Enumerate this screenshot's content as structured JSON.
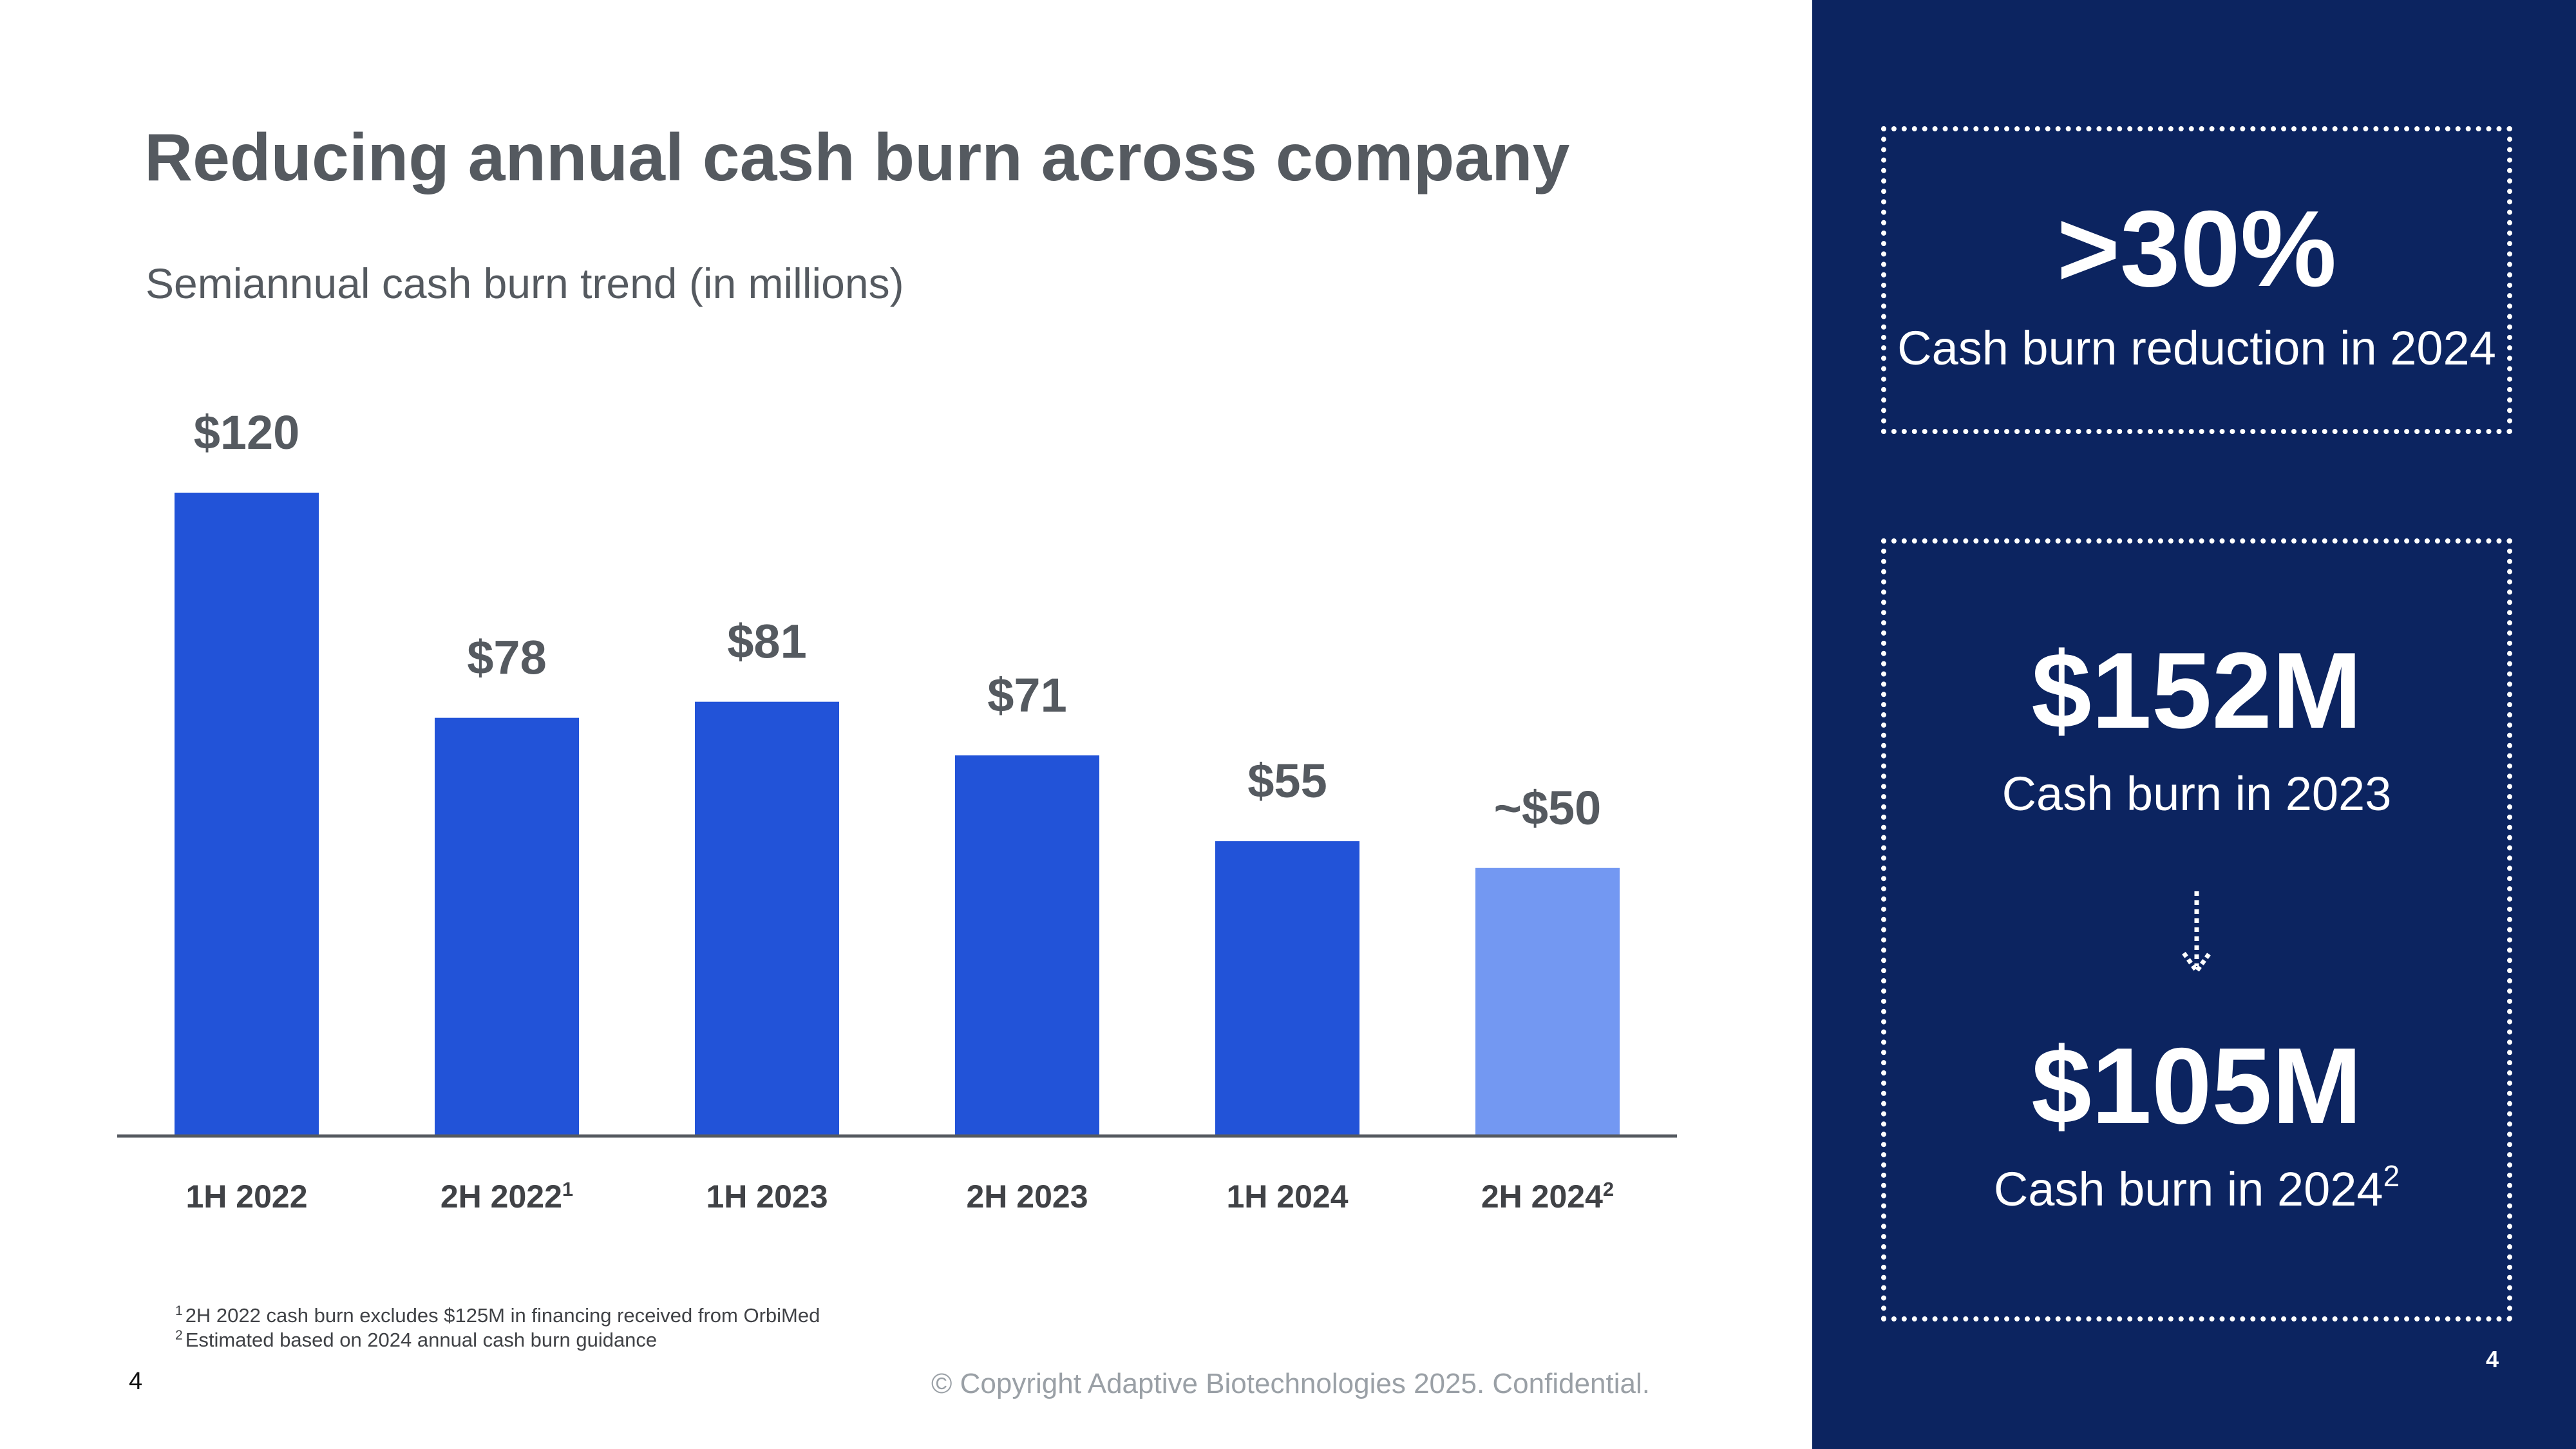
{
  "title": "Reducing annual cash burn across company",
  "subtitle": "Semiannual cash burn trend (in millions)",
  "chart_data": {
    "type": "bar",
    "categories": [
      "1H 2022",
      "2H 2022",
      "1H 2023",
      "2H 2023",
      "1H 2024",
      "2H 2024"
    ],
    "category_superscripts": [
      "",
      "1",
      "",
      "",
      "",
      "2"
    ],
    "values": [
      120,
      78,
      81,
      71,
      55,
      50
    ],
    "value_labels": [
      "$120",
      "$78",
      "$81",
      "$71",
      "$55",
      "~$50"
    ],
    "bar_colors": [
      "#2253d8",
      "#2253d8",
      "#2253d8",
      "#2253d8",
      "#2253d8",
      "#7398f2"
    ],
    "ylim": [
      0,
      120
    ],
    "grid": false,
    "legend": "none"
  },
  "footnotes": [
    {
      "marker": "1",
      "text": "2H 2022 cash burn excludes $125M in financing received from OrbiMed"
    },
    {
      "marker": "2",
      "text": "Estimated based on 2024 annual cash burn guidance"
    }
  ],
  "page_number": "4",
  "copyright": "© Copyright  Adaptive Biotechnologies 2025. Confidential.",
  "panel": {
    "stat1": {
      "value": ">30%",
      "label": "Cash burn reduction in 2024"
    },
    "stat2": {
      "value": "$152M",
      "label": "Cash burn in 2023"
    },
    "stat3": {
      "value": "$105M",
      "label": "Cash burn in 2024",
      "label_sup": "2"
    },
    "arrow_icon": "dotted-down-arrow-icon",
    "page_number": "4"
  },
  "colors": {
    "panel_bg": "#0c2460",
    "bar": "#2253d8",
    "bar_estimate": "#7398f2",
    "text": "#555a60"
  }
}
